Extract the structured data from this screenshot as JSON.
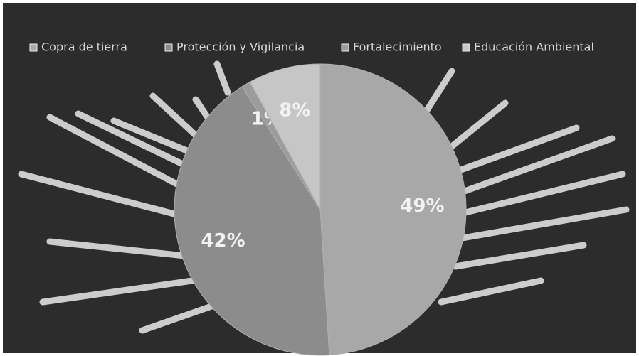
{
  "chart_data": {
    "type": "pie",
    "categories": [
      "Copra de tierra",
      "Protección y Vigilancia",
      "Fortalecimiento",
      "Educación Ambiental"
    ],
    "values": [
      49,
      42,
      1,
      8
    ],
    "value_labels": [
      "49%",
      "42%",
      "1%",
      "8%"
    ],
    "colors": [
      "#a8a8a8",
      "#8c8c8c",
      "#9c9c9c",
      "#c6c6c6"
    ],
    "legend": "top"
  }
}
